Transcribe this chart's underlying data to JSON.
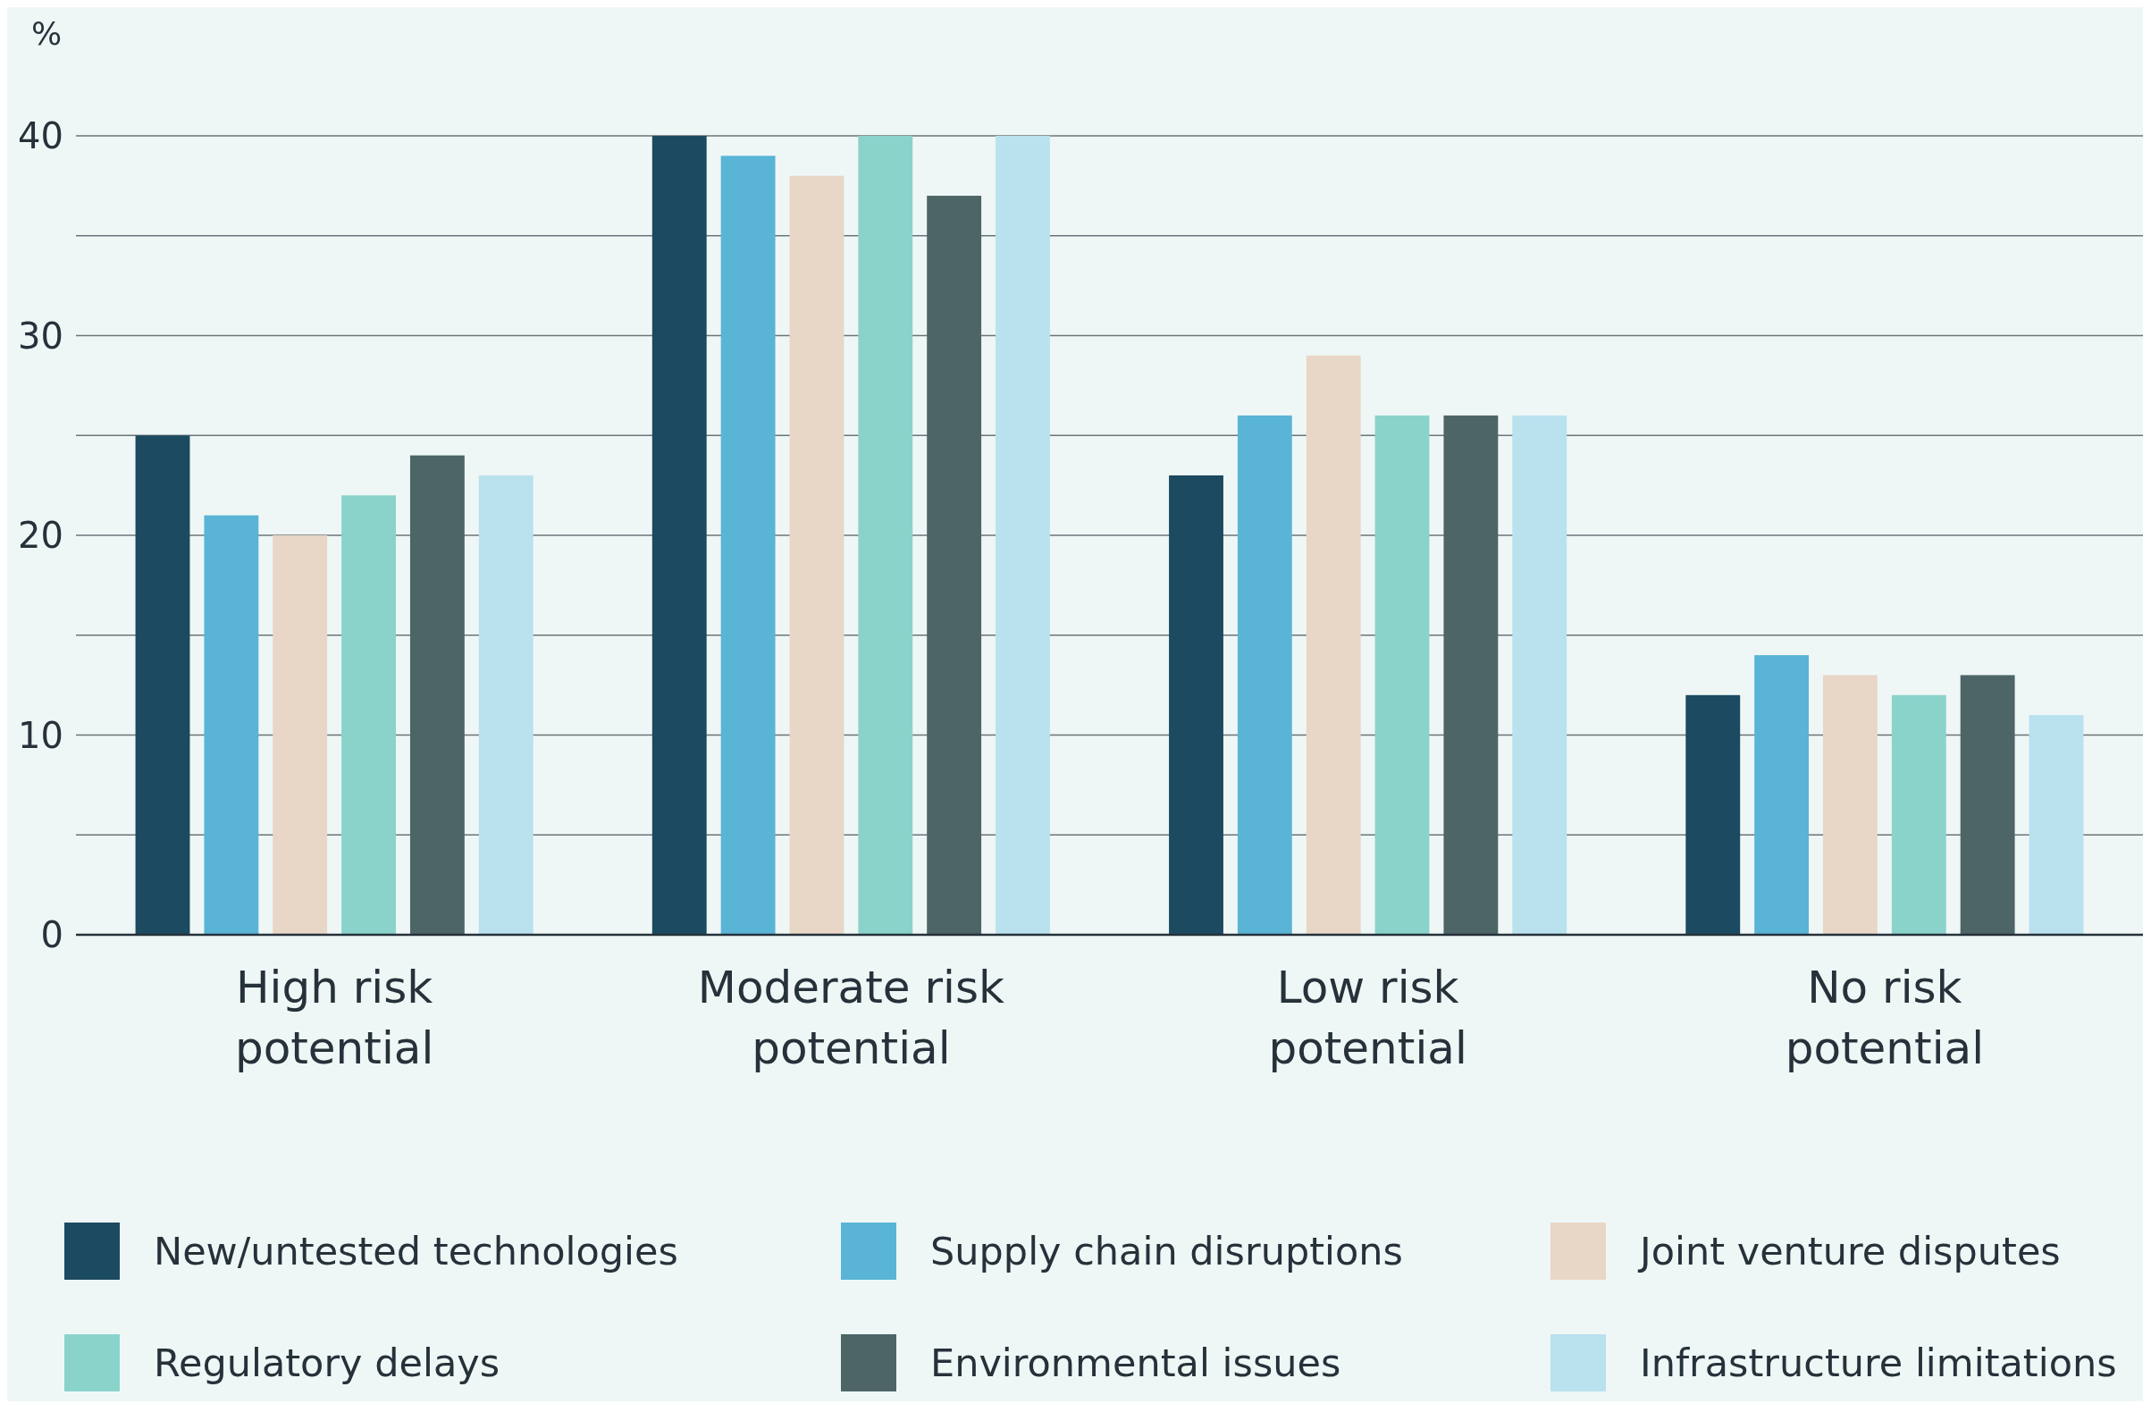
{
  "chart_data": {
    "type": "bar",
    "ylabel": "%",
    "categories": [
      "High risk potential",
      "Moderate risk potential",
      "Low risk potential",
      "No risk potential"
    ],
    "series": [
      {
        "name": "New/untested technologies",
        "color": "#1c4a60",
        "values": [
          25,
          40,
          23,
          12
        ]
      },
      {
        "name": "Supply chain disruptions",
        "color": "#5ab4d6",
        "values": [
          21,
          39,
          26,
          14
        ]
      },
      {
        "name": "Joint venture disputes",
        "color": "#e8d6c6",
        "values": [
          20,
          38,
          29,
          13
        ]
      },
      {
        "name": "Regulatory delays",
        "color": "#8ad3cb",
        "values": [
          22,
          40,
          26,
          12
        ]
      },
      {
        "name": "Environmental issues",
        "color": "#4d6566",
        "values": [
          24,
          37,
          26,
          13
        ]
      },
      {
        "name": "Infrastructure limitations",
        "color": "#b9e1ee",
        "values": [
          23,
          40,
          26,
          11
        ]
      }
    ],
    "ylim": [
      0,
      40
    ],
    "yticks": [
      0,
      {
        "value": 5,
        "label": null
      },
      10,
      {
        "value": 15,
        "label": null
      },
      20,
      {
        "value": 25,
        "label": null
      },
      30,
      {
        "value": 35,
        "label": null
      },
      40
    ],
    "grid": "y",
    "legend": "bottom"
  }
}
